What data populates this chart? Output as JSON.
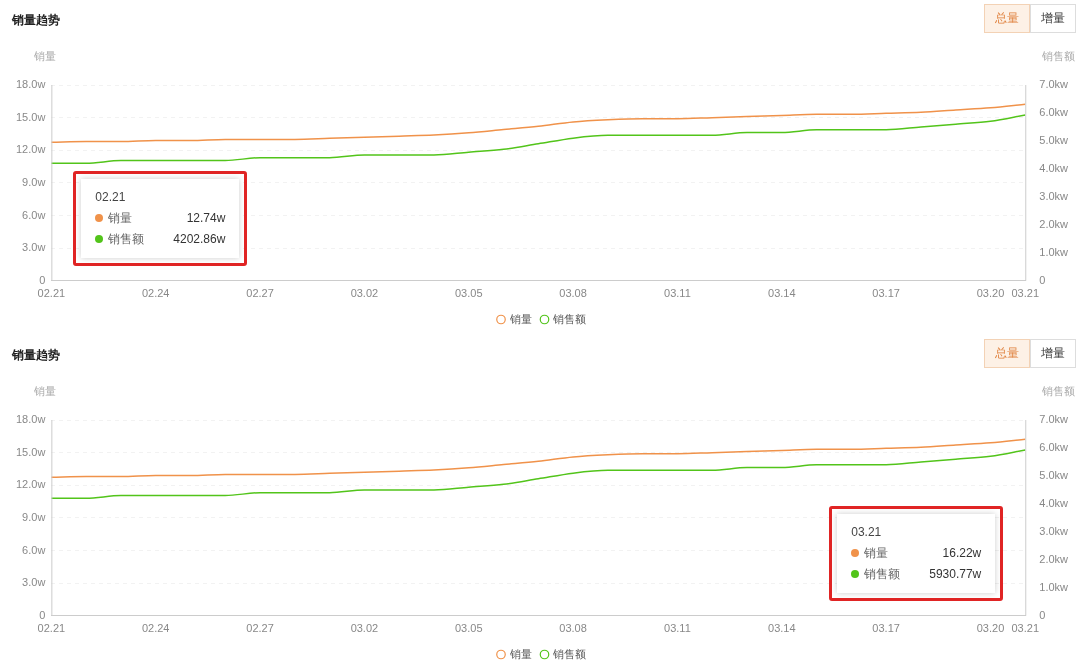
{
  "chart_data": [
    {
      "type": "line",
      "title": "销量趋势",
      "ylabel": "销量",
      "y2label": "销售额",
      "categories": [
        "02.21",
        null,
        null,
        "02.24",
        null,
        null,
        "02.27",
        null,
        null,
        "03.02",
        null,
        null,
        "03.05",
        null,
        null,
        "03.08",
        null,
        null,
        "03.11",
        null,
        null,
        "03.14",
        null,
        null,
        "03.17",
        null,
        null,
        "03.20",
        "03.21"
      ],
      "series": [
        {
          "name": "销量",
          "type": "line",
          "color": "#f0924a",
          "values": [
            12.74,
            12.8,
            12.8,
            12.9,
            12.9,
            13.0,
            13.0,
            13.0,
            13.1,
            13.2,
            13.3,
            13.4,
            13.6,
            13.9,
            14.2,
            14.6,
            14.8,
            14.9,
            14.9,
            15.0,
            15.1,
            15.2,
            15.3,
            15.3,
            15.4,
            15.5,
            15.7,
            15.9,
            16.22
          ]
        },
        {
          "name": "销售额",
          "type": "line",
          "axis": "y2",
          "color": "#52c41a",
          "values": [
            4.2,
            4.2,
            4.3,
            4.3,
            4.3,
            4.3,
            4.4,
            4.4,
            4.4,
            4.5,
            4.5,
            4.5,
            4.6,
            4.7,
            4.9,
            5.1,
            5.2,
            5.2,
            5.2,
            5.2,
            5.3,
            5.3,
            5.4,
            5.4,
            5.4,
            5.5,
            5.6,
            5.7,
            5.93
          ]
        }
      ],
      "ylim": [
        0,
        18
      ],
      "yticks": [
        0,
        {
          "value": 3,
          "label": "3.0w"
        },
        {
          "value": 6,
          "label": "6.0w"
        },
        {
          "value": 9,
          "label": "9.0w"
        },
        {
          "value": 12,
          "label": "12.0w"
        },
        {
          "value": 15,
          "label": "15.0w"
        },
        {
          "value": 18,
          "label": "18.0w"
        }
      ],
      "y2lim": [
        0,
        7
      ],
      "y2ticks": [
        0,
        {
          "value": 1,
          "label": "1.0kw"
        },
        {
          "value": 2,
          "label": "2.0kw"
        },
        {
          "value": 3,
          "label": "3.0kw"
        },
        {
          "value": 4,
          "label": "4.0kw"
        },
        {
          "value": 5,
          "label": "5.0kw"
        },
        {
          "value": 6,
          "label": "6.0kw"
        },
        {
          "value": 7,
          "label": "7.0kw"
        }
      ],
      "grid": "y",
      "legend": "bottom",
      "annotations": [
        "总量",
        "增量",
        "02.21",
        "销量",
        "12.74w",
        "销售额",
        "4202.86w"
      ]
    },
    {
      "type": "line",
      "title": "销量趋势",
      "ylabel": "销量",
      "y2label": "销售额",
      "categories": [
        "02.21",
        null,
        null,
        "02.24",
        null,
        null,
        "02.27",
        null,
        null,
        "03.02",
        null,
        null,
        "03.05",
        null,
        null,
        "03.08",
        null,
        null,
        "03.11",
        null,
        null,
        "03.14",
        null,
        null,
        "03.17",
        null,
        null,
        "03.20",
        "03.21"
      ],
      "series": [
        {
          "name": "销量",
          "type": "line",
          "color": "#f0924a",
          "values": [
            12.74,
            12.8,
            12.8,
            12.9,
            12.9,
            13.0,
            13.0,
            13.0,
            13.1,
            13.2,
            13.3,
            13.4,
            13.6,
            13.9,
            14.2,
            14.6,
            14.8,
            14.9,
            14.9,
            15.0,
            15.1,
            15.2,
            15.3,
            15.3,
            15.4,
            15.5,
            15.7,
            15.9,
            16.22
          ]
        },
        {
          "name": "销售额",
          "type": "line",
          "axis": "y2",
          "color": "#52c41a",
          "values": [
            4.2,
            4.2,
            4.3,
            4.3,
            4.3,
            4.3,
            4.4,
            4.4,
            4.4,
            4.5,
            4.5,
            4.5,
            4.6,
            4.7,
            4.9,
            5.1,
            5.2,
            5.2,
            5.2,
            5.2,
            5.3,
            5.3,
            5.4,
            5.4,
            5.4,
            5.5,
            5.6,
            5.7,
            5.93
          ]
        }
      ],
      "ylim": [
        0,
        18
      ],
      "yticks": [
        0,
        {
          "value": 3,
          "label": "3.0w"
        },
        {
          "value": 6,
          "label": "6.0w"
        },
        {
          "value": 9,
          "label": "9.0w"
        },
        {
          "value": 12,
          "label": "12.0w"
        },
        {
          "value": 15,
          "label": "15.0w"
        },
        {
          "value": 18,
          "label": "18.0w"
        }
      ],
      "y2lim": [
        0,
        7
      ],
      "y2ticks": [
        0,
        {
          "value": 1,
          "label": "1.0kw"
        },
        {
          "value": 2,
          "label": "2.0kw"
        },
        {
          "value": 3,
          "label": "3.0kw"
        },
        {
          "value": 4,
          "label": "4.0kw"
        },
        {
          "value": 5,
          "label": "5.0kw"
        },
        {
          "value": 6,
          "label": "6.0kw"
        },
        {
          "value": 7,
          "label": "7.0kw"
        }
      ],
      "grid": "y",
      "legend": "bottom",
      "annotations": [
        "总量",
        "增量",
        "03.21",
        "销量",
        "16.22w",
        "销售额",
        "5930.77w"
      ]
    }
  ]
}
